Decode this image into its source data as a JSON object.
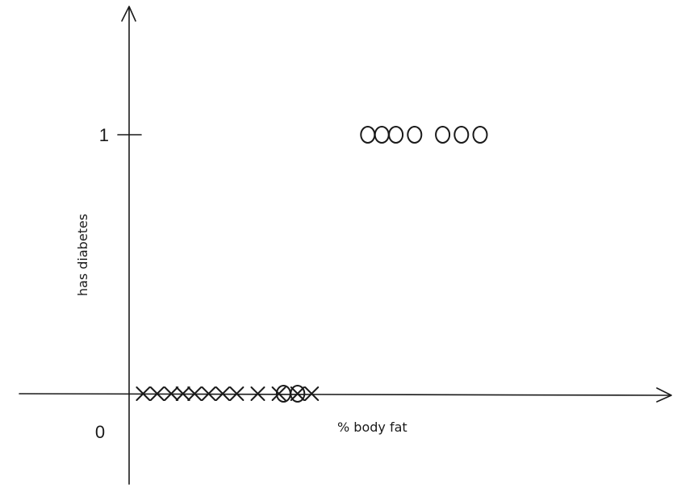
{
  "chart_data": {
    "type": "scatter",
    "xlabel": "% body fat",
    "ylabel": "has diabetes",
    "ylim": [
      0,
      1
    ],
    "y_ticks": [
      "1",
      "0"
    ],
    "grid": false,
    "series": [
      {
        "marker": "x",
        "x": [
          3,
          6,
          9,
          11.5,
          14,
          17,
          20,
          23,
          27.5,
          32,
          36,
          39
        ],
        "y": [
          0,
          0,
          0,
          0,
          0,
          0,
          0,
          0,
          0,
          0,
          0,
          0
        ]
      },
      {
        "marker": "o",
        "x": [
          33,
          36,
          51,
          54,
          57,
          61,
          67,
          71,
          75
        ],
        "y": [
          0,
          0,
          1,
          1,
          1,
          1,
          1,
          1,
          1
        ]
      }
    ]
  }
}
